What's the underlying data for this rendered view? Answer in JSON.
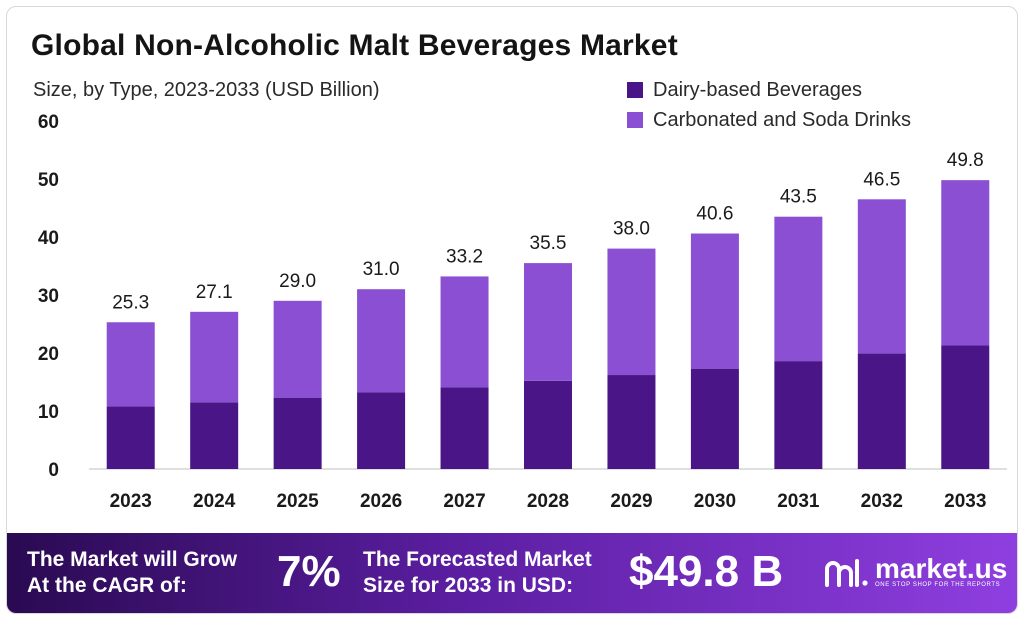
{
  "chart_data": {
    "type": "bar",
    "stacked": true,
    "title": "Global Non-Alcoholic Malt Beverages Market",
    "subtitle": "Size, by Type, 2023-2033 (USD Billion)",
    "categories": [
      "2023",
      "2024",
      "2025",
      "2026",
      "2027",
      "2028",
      "2029",
      "2030",
      "2031",
      "2032",
      "2033"
    ],
    "series": [
      {
        "name": "Dairy-based Beverages",
        "color": "#4a1586",
        "values": [
          10.8,
          11.5,
          12.3,
          13.2,
          14.1,
          15.2,
          16.2,
          17.3,
          18.6,
          19.9,
          21.3
        ]
      },
      {
        "name": "Carbonated and Soda Drinks",
        "color": "#8a4fd3",
        "values": [
          14.5,
          15.6,
          16.7,
          17.8,
          19.1,
          20.3,
          21.8,
          23.3,
          24.9,
          26.6,
          28.5
        ]
      }
    ],
    "totals": [
      "25.3",
      "27.1",
      "29.0",
      "31.0",
      "33.2",
      "35.5",
      "38.0",
      "40.6",
      "43.5",
      "46.5",
      "49.8"
    ],
    "yticks": [
      "0",
      "10",
      "20",
      "30",
      "40",
      "50",
      "60"
    ],
    "ylim": [
      0,
      60
    ],
    "grid": false,
    "legend_position": "top-right"
  },
  "banner": {
    "cagr_text": "The Market will Grow\nAt the CAGR of:",
    "cagr_value": "7%",
    "forecast_text": "The Forecasted Market\nSize for 2033 in USD:",
    "forecast_value": "$49.8 B",
    "brand_name": "market.us",
    "brand_tagline": "ONE STOP SHOP FOR THE REPORTS"
  },
  "logo_icon": "market-us-logo-icon"
}
